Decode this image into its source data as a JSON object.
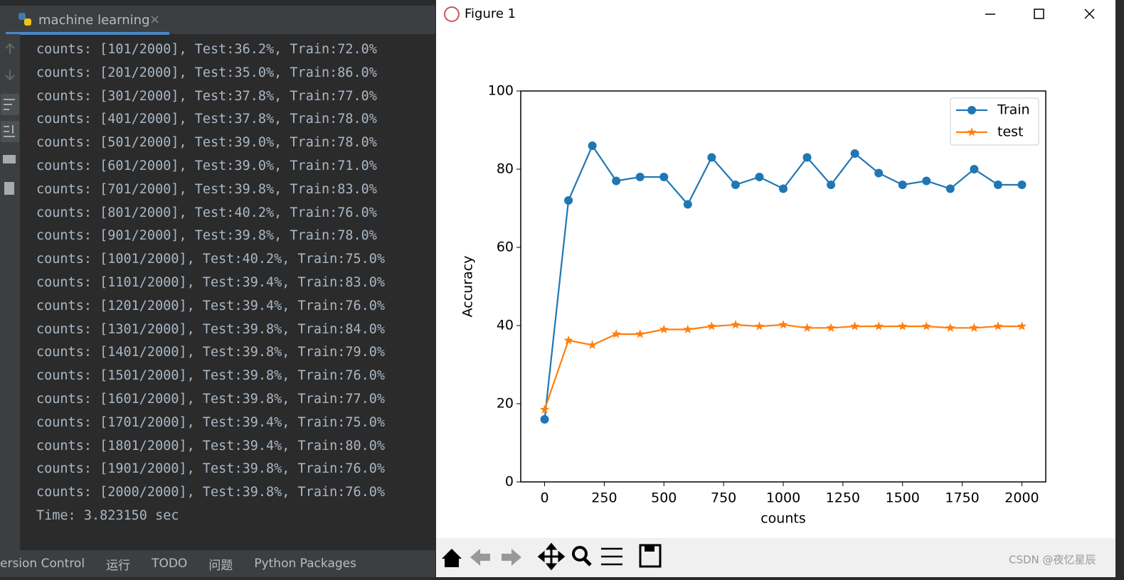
{
  "ide": {
    "tab": "machine learning",
    "console": [
      "counts: [101/2000], Test:36.2%, Train:72.0%",
      "counts: [201/2000], Test:35.0%, Train:86.0%",
      "counts: [301/2000], Test:37.8%, Train:77.0%",
      "counts: [401/2000], Test:37.8%, Train:78.0%",
      "counts: [501/2000], Test:39.0%, Train:78.0%",
      "counts: [601/2000], Test:39.0%, Train:71.0%",
      "counts: [701/2000], Test:39.8%, Train:83.0%",
      "counts: [801/2000], Test:40.2%, Train:76.0%",
      "counts: [901/2000], Test:39.8%, Train:78.0%",
      "counts: [1001/2000], Test:40.2%, Train:75.0%",
      "counts: [1101/2000], Test:39.4%, Train:83.0%",
      "counts: [1201/2000], Test:39.4%, Train:76.0%",
      "counts: [1301/2000], Test:39.8%, Train:84.0%",
      "counts: [1401/2000], Test:39.8%, Train:79.0%",
      "counts: [1501/2000], Test:39.8%, Train:76.0%",
      "counts: [1601/2000], Test:39.8%, Train:77.0%",
      "counts: [1701/2000], Test:39.4%, Train:75.0%",
      "counts: [1801/2000], Test:39.4%, Train:80.0%",
      "counts: [1901/2000], Test:39.8%, Train:76.0%",
      "counts: [2000/2000], Test:39.8%, Train:76.0%",
      "Time: 3.823150 sec"
    ],
    "bottom_tabs": [
      "ersion Control",
      "运行",
      "TODO",
      "问题",
      "Python Packages"
    ]
  },
  "window": {
    "title": "Figure 1"
  },
  "watermark": "CSDN @夜忆星辰",
  "chart_data": {
    "type": "line",
    "xlabel": "counts",
    "ylabel": "Accuracy",
    "x": [
      0,
      100,
      200,
      300,
      400,
      500,
      600,
      700,
      800,
      900,
      1000,
      1100,
      1200,
      1300,
      1400,
      1500,
      1600,
      1700,
      1800,
      1900,
      2000
    ],
    "series": [
      {
        "name": "Train",
        "color": "#1f77b4",
        "marker": "o",
        "values": [
          16,
          72,
          86,
          77,
          78,
          78,
          71,
          83,
          76,
          78,
          75,
          83,
          76,
          84,
          79,
          76,
          77,
          75,
          80,
          76,
          76
        ]
      },
      {
        "name": "test",
        "color": "#ff7f0e",
        "marker": "*",
        "values": [
          18.5,
          36.2,
          35.0,
          37.8,
          37.8,
          39.0,
          39.0,
          39.8,
          40.2,
          39.8,
          40.2,
          39.4,
          39.4,
          39.8,
          39.8,
          39.8,
          39.8,
          39.4,
          39.4,
          39.8,
          39.8
        ]
      }
    ],
    "xlim": [
      -100,
      2100
    ],
    "ylim": [
      0,
      100
    ],
    "xticks": [
      0,
      250,
      500,
      750,
      1000,
      1250,
      1500,
      1750,
      2000
    ],
    "yticks": [
      0,
      20,
      40,
      60,
      80,
      100
    ],
    "legend": "upper right"
  }
}
